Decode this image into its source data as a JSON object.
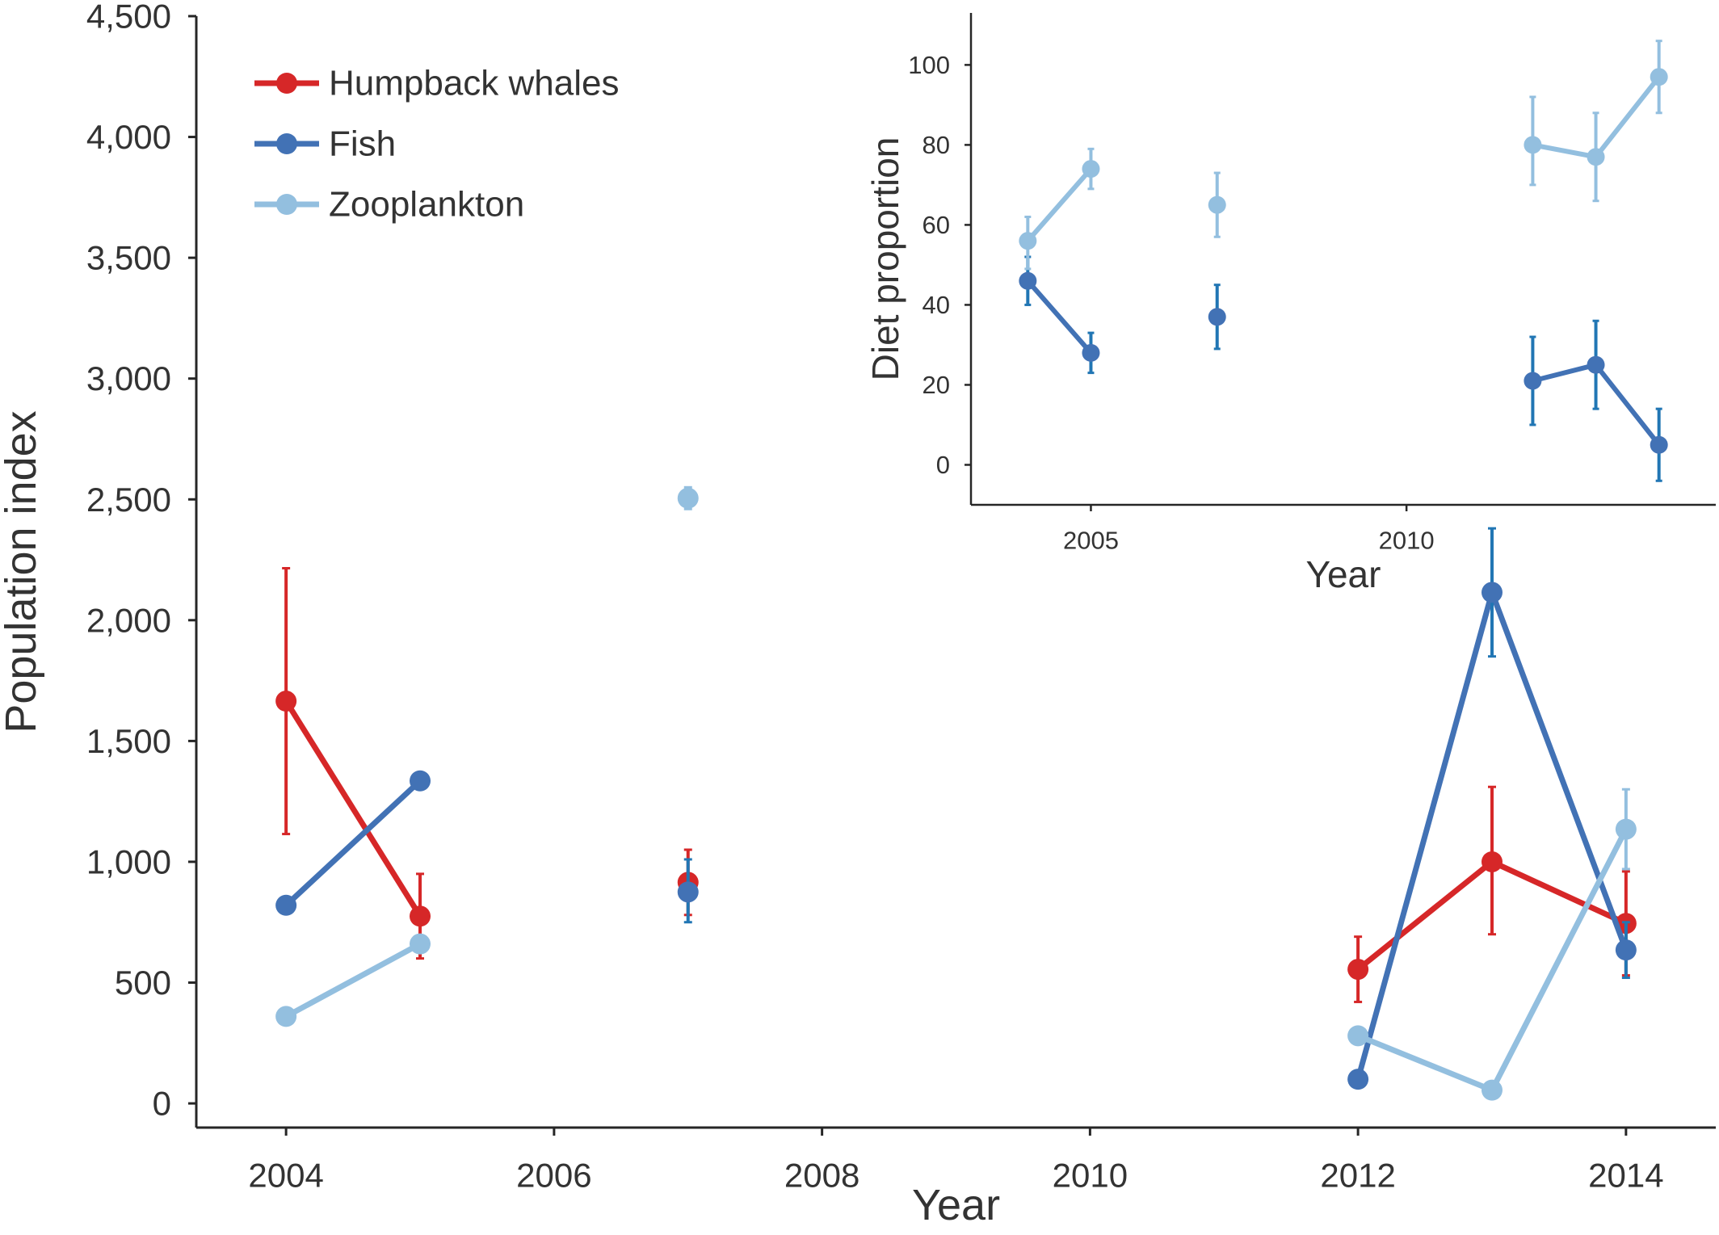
{
  "chart_data": [
    {
      "type": "line",
      "title": "",
      "xlabel": "Year",
      "ylabel": "Population index",
      "xlim": [
        2003.33,
        2014.67
      ],
      "ylim": [
        -100,
        4500
      ],
      "xticks": [
        2004,
        2006,
        2008,
        2010,
        2012,
        2014
      ],
      "xtick_labels": [
        "2004",
        "2006",
        "2008",
        "2010",
        "2012",
        "2014"
      ],
      "yticks": [
        0,
        500,
        1000,
        1500,
        2000,
        2500,
        3000,
        3500,
        4000,
        4500
      ],
      "ytick_labels": [
        "0",
        "500",
        "1,000",
        "1,500",
        "2,000",
        "2,500",
        "3,000",
        "3,500",
        "4,000",
        "4,500"
      ],
      "legend": {
        "position": "top-left"
      },
      "grid": false,
      "x": [
        2004,
        2005,
        2007,
        2012,
        2013,
        2014
      ],
      "series": [
        {
          "name": "Humpback whales",
          "color": "#d62728",
          "errorbar_color": "#d62728",
          "values": [
            1665,
            775,
            915,
            555,
            1000,
            745
          ],
          "error_low": [
            1115,
            600,
            780,
            420,
            700,
            530
          ],
          "error_high": [
            2215,
            950,
            1050,
            690,
            1310,
            960
          ]
        },
        {
          "name": "Fish",
          "color": "#4272b5",
          "errorbar_color": "#2176b4",
          "values": [
            820,
            1335,
            875,
            100,
            2115,
            635
          ],
          "error_low": [
            null,
            null,
            750,
            null,
            1850,
            520
          ],
          "error_high": [
            null,
            null,
            1010,
            null,
            2380,
            750
          ]
        },
        {
          "name": "Zooplankton",
          "color": "#93bfdf",
          "errorbar_color": "#93bfdf",
          "values": [
            360,
            660,
            2505,
            280,
            55,
            1135
          ],
          "error_low": [
            null,
            null,
            2460,
            null,
            null,
            970
          ],
          "error_high": [
            null,
            null,
            2550,
            null,
            null,
            1300
          ]
        }
      ]
    },
    {
      "type": "line",
      "title": "",
      "xlabel": "Year",
      "ylabel": "Diet proportion",
      "xlim": [
        2003.1,
        2014.9
      ],
      "ylim": [
        -10,
        113
      ],
      "xticks": [
        2005,
        2010
      ],
      "xtick_labels": [
        "2005",
        "2010"
      ],
      "yticks": [
        0,
        20,
        40,
        60,
        80,
        100
      ],
      "ytick_labels": [
        "0",
        "20",
        "40",
        "60",
        "80",
        "100"
      ],
      "grid": false,
      "x": [
        2004,
        2005,
        2007,
        2012,
        2013,
        2014
      ],
      "series": [
        {
          "name": "Fish",
          "color": "#4272b5",
          "errorbar_color": "#2176b4",
          "values": [
            46,
            28,
            37,
            21,
            25,
            5
          ],
          "error_low": [
            40,
            23,
            29,
            10,
            14,
            -4
          ],
          "error_high": [
            52,
            33,
            45,
            32,
            36,
            14
          ]
        },
        {
          "name": "Zooplankton",
          "color": "#93bfdf",
          "errorbar_color": "#93bfdf",
          "values": [
            56,
            74,
            65,
            80,
            77,
            97
          ],
          "error_low": [
            49,
            69,
            57,
            70,
            66,
            88
          ],
          "error_high": [
            62,
            79,
            73,
            92,
            88,
            106
          ]
        }
      ]
    }
  ]
}
